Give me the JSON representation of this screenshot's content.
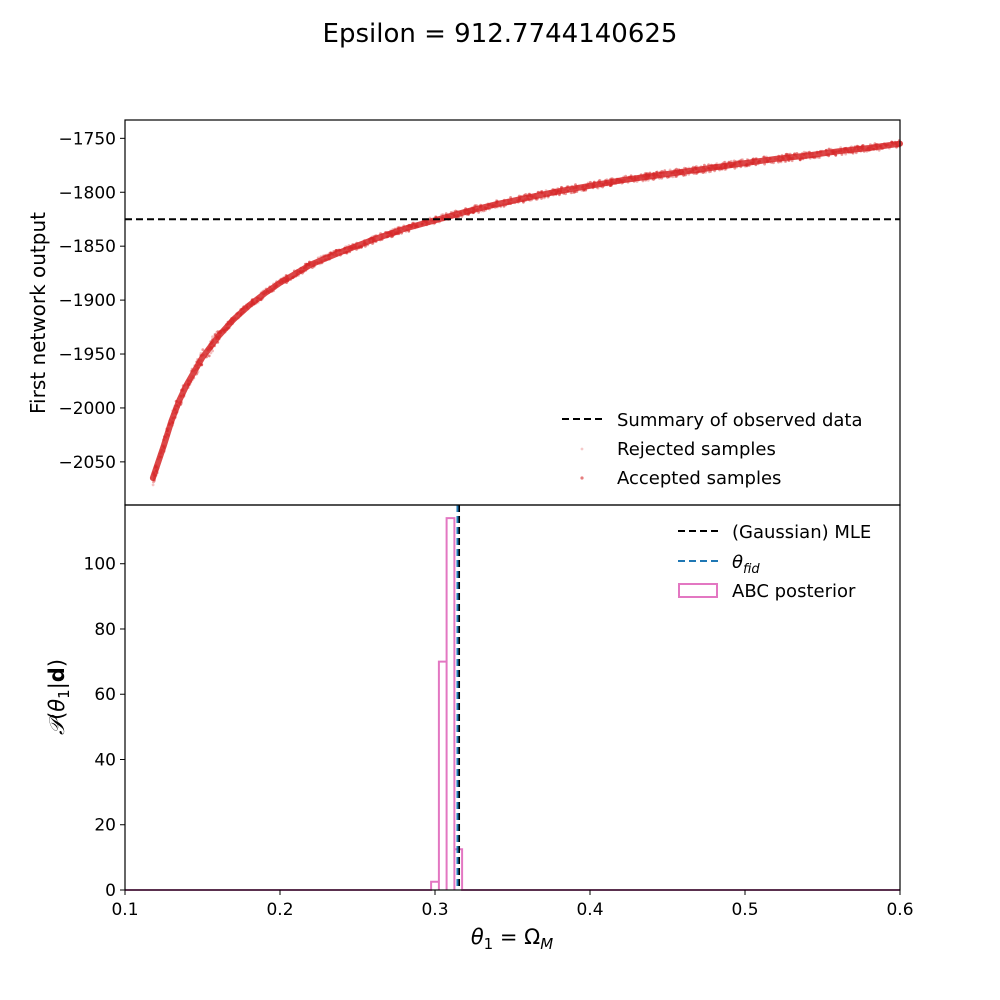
{
  "figure": {
    "suptitle": "Epsilon = 912.7744140625"
  },
  "chart_data": [
    {
      "type": "scatter",
      "ylabel": "First network output",
      "xlim": [
        0.1,
        0.6
      ],
      "ylim": [
        -2090,
        -1733
      ],
      "y_ticks": [
        -1750,
        -1800,
        -1850,
        -1900,
        -1950,
        -2000,
        -2050
      ],
      "y_tick_labels": [
        "−1750",
        "−1800",
        "−1850",
        "−1900",
        "−1950",
        "−2000",
        "−2050"
      ],
      "observed_summary": -1825,
      "series": [
        {
          "name": "Accepted samples",
          "color": "#d62728",
          "x": [
            0.118,
            0.125,
            0.13,
            0.135,
            0.14,
            0.15,
            0.16,
            0.17,
            0.18,
            0.19,
            0.2,
            0.22,
            0.24,
            0.26,
            0.28,
            0.3,
            0.32,
            0.34,
            0.36,
            0.38,
            0.4,
            0.42,
            0.44,
            0.46,
            0.48,
            0.5,
            0.52,
            0.54,
            0.56,
            0.58,
            0.6
          ],
          "y": [
            -2065,
            -2035,
            -2012,
            -1993,
            -1978,
            -1953,
            -1934,
            -1918,
            -1905,
            -1894,
            -1884,
            -1867,
            -1855,
            -1844,
            -1834,
            -1826,
            -1818,
            -1811,
            -1805,
            -1799,
            -1794,
            -1789,
            -1785,
            -1781,
            -1777,
            -1773,
            -1769,
            -1766,
            -1762,
            -1759,
            -1755
          ]
        },
        {
          "name": "Rejected samples",
          "color": "#d62728",
          "x": [],
          "y": []
        }
      ],
      "legend": {
        "position": "lower-right",
        "entries": [
          {
            "label": "Summary of observed data",
            "style": "dashed-line",
            "color": "#000000"
          },
          {
            "label": "Rejected samples",
            "style": "marker",
            "color": "#d62728"
          },
          {
            "label": "Accepted samples",
            "style": "marker",
            "color": "#d62728"
          }
        ]
      }
    },
    {
      "type": "histogram",
      "xlabel": "θ1 = ΩM",
      "ylabel": "P(θ1|d)",
      "xlim": [
        0.1,
        0.6
      ],
      "ylim": [
        0,
        118
      ],
      "x_ticks": [
        0.1,
        0.2,
        0.3,
        0.4,
        0.5,
        0.6
      ],
      "x_tick_labels": [
        "0.1",
        "0.2",
        "0.3",
        "0.4",
        "0.5",
        "0.6"
      ],
      "y_ticks": [
        0,
        20,
        40,
        60,
        80,
        100
      ],
      "y_tick_labels": [
        "0",
        "20",
        "40",
        "60",
        "80",
        "100"
      ],
      "mle": 0.3155,
      "theta_fid": 0.3145,
      "bins": [
        {
          "x0": 0.2975,
          "x1": 0.3025,
          "value": 2.5
        },
        {
          "x0": 0.3025,
          "x1": 0.3075,
          "value": 70
        },
        {
          "x0": 0.3075,
          "x1": 0.3125,
          "value": 114
        },
        {
          "x0": 0.3125,
          "x1": 0.3175,
          "value": 12.5
        }
      ],
      "legend": {
        "position": "upper-right",
        "entries": [
          {
            "label": "(Gaussian) MLE",
            "style": "dashed-line",
            "color": "#000000"
          },
          {
            "label": "θfid",
            "style": "dashed-line",
            "color": "#1f77b4"
          },
          {
            "label": "ABC posterior",
            "style": "box",
            "color": "#e377c2"
          }
        ]
      }
    }
  ]
}
